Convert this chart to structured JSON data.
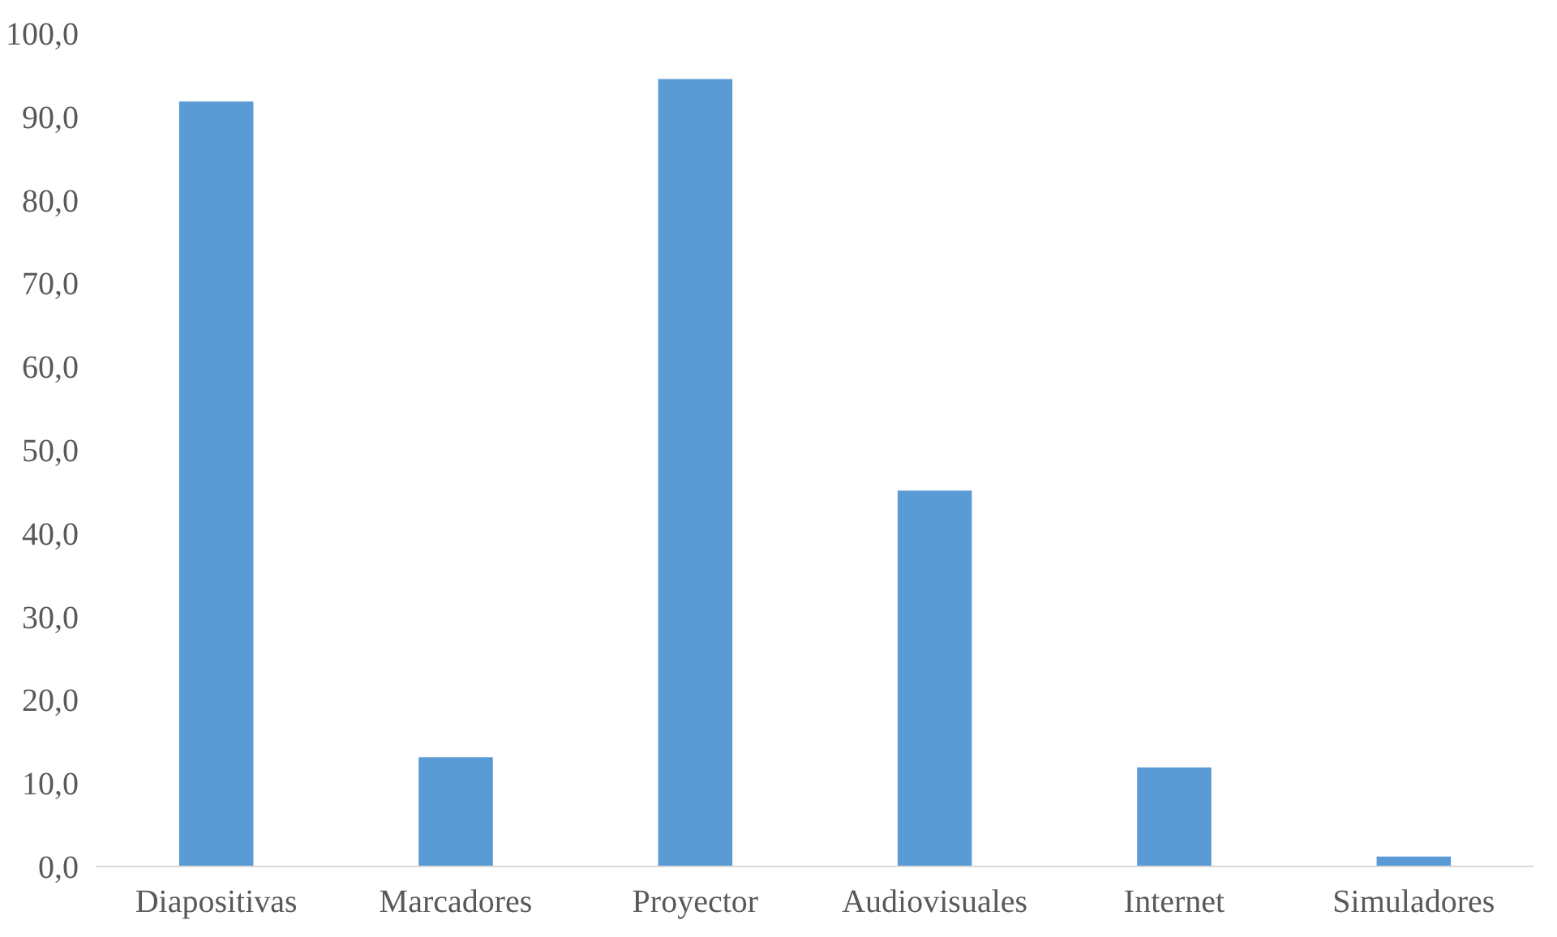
{
  "chart_data": {
    "type": "bar",
    "categories": [
      "Diapositivas",
      "Marcadores",
      "Proyector",
      "Audiovisuales",
      "Internet",
      "Simuladores"
    ],
    "values": [
      91.8,
      13.1,
      94.5,
      45.1,
      11.9,
      1.2
    ],
    "color": "#5b9bd5",
    "ylim": [
      0,
      100
    ],
    "yticks": [
      {
        "value": 0,
        "label": "0,0"
      },
      {
        "value": 10,
        "label": "10,0"
      },
      {
        "value": 20,
        "label": "20,0"
      },
      {
        "value": 30,
        "label": "30,0"
      },
      {
        "value": 40,
        "label": "40,0"
      },
      {
        "value": 50,
        "label": "50,0"
      },
      {
        "value": 60,
        "label": "60,0"
      },
      {
        "value": 70,
        "label": "70,0"
      },
      {
        "value": 80,
        "label": "80,0"
      },
      {
        "value": 90,
        "label": "90,0"
      },
      {
        "value": 100,
        "label": "100,0"
      }
    ],
    "grid": false
  }
}
